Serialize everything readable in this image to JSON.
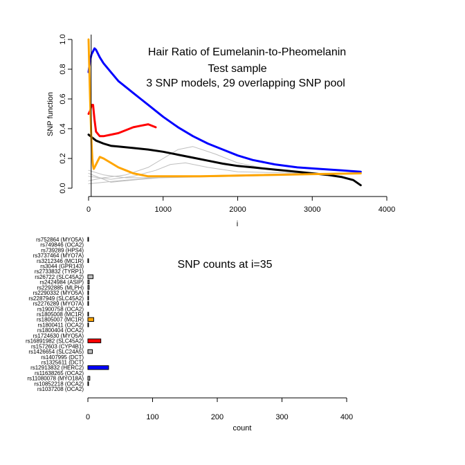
{
  "chart_data": [
    {
      "type": "line",
      "title_lines": [
        "Hair Ratio of Eumelanin-to-Pheomelanin",
        "Test sample",
        "3 SNP models, 29 overlapping SNP pool"
      ],
      "xlabel": "i",
      "ylabel": "SNP function",
      "xlim": [
        0,
        4000
      ],
      "ylim": [
        0,
        1.0
      ],
      "xticks": [
        "0",
        "1000",
        "2000",
        "3000",
        "4000"
      ],
      "yticks": [
        "0.0",
        "0.2",
        "0.4",
        "0.6",
        "0.8",
        "1.0"
      ],
      "vline_x": 35,
      "series": [
        {
          "color": "#0000ff",
          "points": [
            [
              0,
              0.78
            ],
            [
              20,
              0.86
            ],
            [
              40,
              0.9
            ],
            [
              60,
              0.92
            ],
            [
              80,
              0.94
            ],
            [
              100,
              0.93
            ],
            [
              150,
              0.88
            ],
            [
              200,
              0.84
            ],
            [
              300,
              0.78
            ],
            [
              400,
              0.72
            ],
            [
              500,
              0.68
            ],
            [
              600,
              0.64
            ],
            [
              700,
              0.6
            ],
            [
              800,
              0.56
            ],
            [
              900,
              0.52
            ],
            [
              1000,
              0.48
            ],
            [
              1200,
              0.41
            ],
            [
              1400,
              0.35
            ],
            [
              1600,
              0.3
            ],
            [
              1800,
              0.26
            ],
            [
              2000,
              0.22
            ],
            [
              2200,
              0.19
            ],
            [
              2500,
              0.16
            ],
            [
              2800,
              0.14
            ],
            [
              3100,
              0.13
            ],
            [
              3400,
              0.12
            ],
            [
              3650,
              0.11
            ]
          ]
        },
        {
          "color": "#ff0000",
          "points": [
            [
              0,
              0.5
            ],
            [
              20,
              0.52
            ],
            [
              40,
              0.56
            ],
            [
              60,
              0.56
            ],
            [
              80,
              0.46
            ],
            [
              100,
              0.38
            ],
            [
              150,
              0.35
            ],
            [
              200,
              0.35
            ],
            [
              300,
              0.36
            ],
            [
              400,
              0.37
            ],
            [
              500,
              0.39
            ],
            [
              600,
              0.41
            ],
            [
              700,
              0.42
            ],
            [
              800,
              0.43
            ],
            [
              900,
              0.41
            ]
          ]
        },
        {
          "color": "#000000",
          "points": [
            [
              0,
              0.36
            ],
            [
              50,
              0.34
            ],
            [
              100,
              0.32
            ],
            [
              200,
              0.3
            ],
            [
              300,
              0.285
            ],
            [
              400,
              0.28
            ],
            [
              600,
              0.27
            ],
            [
              800,
              0.26
            ],
            [
              1000,
              0.245
            ],
            [
              1200,
              0.225
            ],
            [
              1400,
              0.205
            ],
            [
              1600,
              0.185
            ],
            [
              1800,
              0.165
            ],
            [
              2000,
              0.15
            ],
            [
              2200,
              0.14
            ],
            [
              2500,
              0.125
            ],
            [
              2800,
              0.11
            ],
            [
              3000,
              0.1
            ],
            [
              3200,
              0.09
            ],
            [
              3400,
              0.075
            ],
            [
              3550,
              0.055
            ],
            [
              3650,
              0.02
            ]
          ]
        },
        {
          "color": "#ffa500",
          "points": [
            [
              0,
              1.0
            ],
            [
              10,
              0.8
            ],
            [
              20,
              0.6
            ],
            [
              30,
              0.45
            ],
            [
              40,
              0.3
            ],
            [
              50,
              0.2
            ],
            [
              60,
              0.15
            ],
            [
              70,
              0.13
            ],
            [
              90,
              0.15
            ],
            [
              120,
              0.18
            ],
            [
              150,
              0.21
            ],
            [
              200,
              0.2
            ],
            [
              300,
              0.17
            ],
            [
              400,
              0.14
            ],
            [
              500,
              0.12
            ],
            [
              600,
              0.1
            ],
            [
              800,
              0.08
            ],
            [
              1000,
              0.08
            ],
            [
              1500,
              0.08
            ],
            [
              2000,
              0.085
            ],
            [
              2500,
              0.09
            ],
            [
              3000,
              0.095
            ],
            [
              3650,
              0.1
            ]
          ]
        },
        {
          "color": "#bebebe",
          "points": [
            [
              0,
              0.05
            ],
            [
              200,
              0.07
            ],
            [
              500,
              0.09
            ],
            [
              800,
              0.14
            ],
            [
              1000,
              0.2
            ],
            [
              1200,
              0.26
            ],
            [
              1400,
              0.28
            ],
            [
              1700,
              0.23
            ],
            [
              2000,
              0.17
            ],
            [
              2500,
              0.12
            ],
            [
              3000,
              0.1
            ],
            [
              3650,
              0.1
            ]
          ]
        },
        {
          "color": "#bebebe",
          "points": [
            [
              0,
              0.08
            ],
            [
              300,
              0.06
            ],
            [
              600,
              0.08
            ],
            [
              900,
              0.12
            ],
            [
              1100,
              0.16
            ],
            [
              1300,
              0.17
            ],
            [
              1600,
              0.14
            ],
            [
              2000,
              0.11
            ],
            [
              3000,
              0.1
            ],
            [
              3650,
              0.1
            ]
          ]
        },
        {
          "color": "#bebebe",
          "points": [
            [
              0,
              0.1
            ],
            [
              300,
              0.04
            ],
            [
              700,
              0.06
            ],
            [
              1200,
              0.08
            ],
            [
              2000,
              0.09
            ],
            [
              3000,
              0.1
            ],
            [
              3650,
              0.1
            ]
          ]
        },
        {
          "color": "#bebebe",
          "points": [
            [
              0,
              0.03
            ],
            [
              400,
              0.05
            ],
            [
              900,
              0.07
            ],
            [
              1500,
              0.08
            ],
            [
              2500,
              0.09
            ],
            [
              3650,
              0.1
            ]
          ]
        },
        {
          "color": "#bebebe",
          "points": [
            [
              0,
              0.12
            ],
            [
              200,
              0.09
            ],
            [
              500,
              0.07
            ],
            [
              1000,
              0.07
            ],
            [
              2000,
              0.08
            ],
            [
              3650,
              0.1
            ]
          ]
        }
      ]
    },
    {
      "type": "bar",
      "title": "SNP counts at i=35",
      "xlabel": "count",
      "xlim": [
        0,
        400
      ],
      "xticks": [
        "0",
        "100",
        "200",
        "300",
        "400"
      ],
      "categories": [
        "rs752864 (MYO5A)",
        "rs749846 (OCA2)",
        "rs739289 (HPS4)",
        "rs3737464 (MYO7A)",
        "rs3212346 (MC1R)",
        "rs3044 (GPR143)",
        "rs2733832 (TYRP1)",
        "rs26722 (SLC45A2)",
        "rs2424984 (ASIP)",
        "rs2292885 (MLPH)",
        "rs2290332 (MYO5A)",
        "rs2287949 (SLC45A2)",
        "rs2276289 (MYO7A)",
        "rs1900758 (OCA2)",
        "rs1805008 (MC1R)",
        "rs1805007 (MC1R)",
        "rs1800411 (OCA2)",
        "rs1800404 (OCA2)",
        "rs1724630 (MYO5A)",
        "rs16891982 (SLC45A2)",
        "rs1572603 (CYP4B1)",
        "rs1426654 (SLC24A5)",
        "rs1407995 (DCT)",
        "rs1325611 (DCT)",
        "rs12913832 (HERC2)",
        "rs11638265 (OCA2)",
        "rs11080078 (MYO18A)",
        "rs10852218 (OCA2)",
        "rs1037208 (OCA2)"
      ],
      "values": [
        1,
        0,
        0,
        0,
        1,
        0,
        0,
        8,
        2,
        2,
        1,
        1,
        1,
        0,
        1,
        9,
        1,
        0,
        0,
        20,
        0,
        7,
        0,
        0,
        32,
        0,
        3,
        1,
        0
      ],
      "colors": [
        "#bebebe",
        "#bebebe",
        "#bebebe",
        "#bebebe",
        "#bebebe",
        "#bebebe",
        "#bebebe",
        "#bebebe",
        "#bebebe",
        "#bebebe",
        "#bebebe",
        "#bebebe",
        "#bebebe",
        "#bebebe",
        "#bebebe",
        "#ffa500",
        "#bebebe",
        "#bebebe",
        "#bebebe",
        "#ff0000",
        "#bebebe",
        "#bebebe",
        "#bebebe",
        "#bebebe",
        "#0000ff",
        "#bebebe",
        "#bebebe",
        "#bebebe",
        "#bebebe"
      ]
    }
  ]
}
